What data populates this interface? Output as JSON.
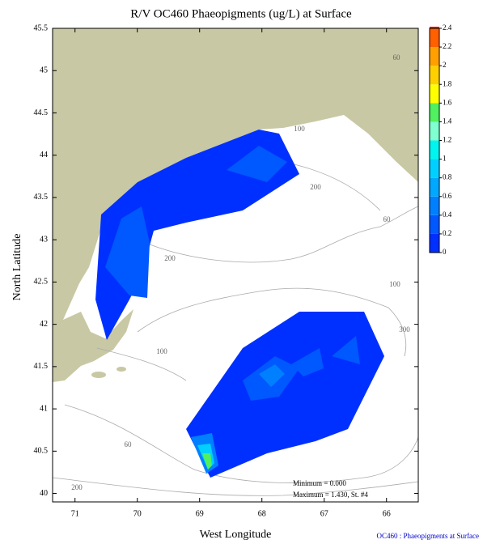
{
  "chart_data": {
    "type": "contour-map",
    "title": "R/V OC460 Phaeopigments (ug/L) at Surface",
    "xlabel": "West Longitude",
    "ylabel": "North Latitude",
    "xlim": [
      71.36,
      65.49
    ],
    "ylim": [
      39.9,
      45.5
    ],
    "xticks": [
      71,
      70,
      69,
      68,
      67,
      66
    ],
    "yticks": [
      40,
      40.5,
      41,
      41.5,
      42,
      42.5,
      43,
      43.5,
      44,
      44.5,
      45,
      45.5
    ],
    "colorbar": {
      "ticks": [
        0,
        0.2,
        0.4,
        0.6,
        0.8,
        1,
        1.2,
        1.4,
        1.6,
        1.8,
        2,
        2.2,
        2.4
      ],
      "colors": [
        "#0030ff",
        "#0058ff",
        "#0080ff",
        "#00a8ff",
        "#00d0ff",
        "#00f4f0",
        "#80ffd0",
        "#50f060",
        "#ffff00",
        "#ffd000",
        "#ffa000",
        "#ff6000"
      ],
      "top_color": "#ff0000"
    },
    "depth_labels": [
      60,
      200,
      60,
      100,
      200,
      100,
      300,
      60,
      200,
      100
    ],
    "annotations": [
      "Minimum = 0.000",
      "Maximum = 1.430, St. #4"
    ],
    "footer": "OC460 : Phaeopigments at Surface"
  }
}
